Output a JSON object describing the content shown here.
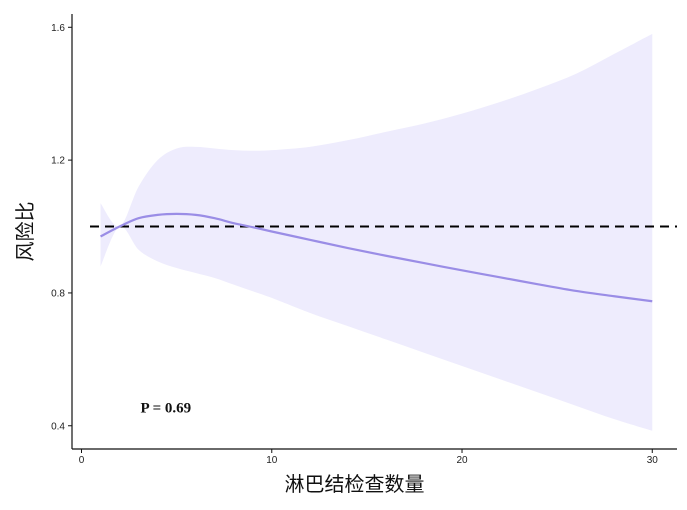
{
  "chart_data": {
    "type": "line",
    "title": "",
    "xlabel": "淋巴结检查数量",
    "ylabel": "风险比",
    "xlim": [
      -0.5,
      31.3
    ],
    "ylim": [
      0.33,
      1.64
    ],
    "x_ticks": [
      0,
      10,
      20,
      30
    ],
    "x_tick_labels": [
      "0",
      "10",
      "20",
      "30"
    ],
    "y_ticks": [
      0.4,
      0.8,
      1.2,
      1.6
    ],
    "y_tick_labels": [
      "0.4",
      "0.8",
      "1.2",
      "1.6"
    ],
    "grid": false,
    "legend": "none",
    "reference_line": {
      "y": 1.0,
      "style": "dashed",
      "color": "#000000"
    },
    "annotation": {
      "text": "P = 0.69",
      "x": 3.1,
      "y": 0.455
    },
    "series": [
      {
        "color": "#9a8de6",
        "band_color": "#eeecfd",
        "x": [
          1,
          2,
          3,
          4,
          5,
          6,
          7,
          8,
          9,
          10,
          12,
          14,
          16,
          18,
          20,
          22,
          24,
          26,
          28,
          30
        ],
        "y": [
          0.97,
          1.0,
          1.025,
          1.035,
          1.038,
          1.035,
          1.025,
          1.01,
          0.998,
          0.985,
          0.96,
          0.935,
          0.912,
          0.89,
          0.868,
          0.847,
          0.826,
          0.806,
          0.79,
          0.775
        ],
        "lower": [
          0.88,
          1.0,
          0.93,
          0.895,
          0.875,
          0.86,
          0.845,
          0.825,
          0.805,
          0.785,
          0.74,
          0.7,
          0.66,
          0.62,
          0.58,
          0.54,
          0.5,
          0.46,
          0.42,
          0.385
        ],
        "upper": [
          1.07,
          1.0,
          1.12,
          1.2,
          1.235,
          1.24,
          1.235,
          1.23,
          1.228,
          1.23,
          1.24,
          1.26,
          1.285,
          1.31,
          1.34,
          1.375,
          1.415,
          1.46,
          1.52,
          1.58
        ]
      }
    ]
  }
}
